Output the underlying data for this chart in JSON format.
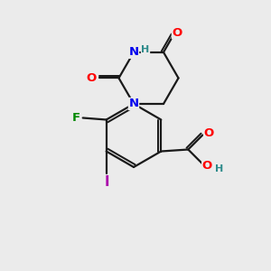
{
  "bg_color": "#ebebeb",
  "bond_color": "#1a1a1a",
  "bond_width": 1.6,
  "atom_colors": {
    "O": "#ff0000",
    "N": "#0000ee",
    "F": "#008800",
    "I": "#aa00aa",
    "H": "#2e8b8b",
    "C": "#1a1a1a"
  },
  "font_size": 9.5,
  "fig_size": [
    3.0,
    3.0
  ],
  "dpi": 100
}
